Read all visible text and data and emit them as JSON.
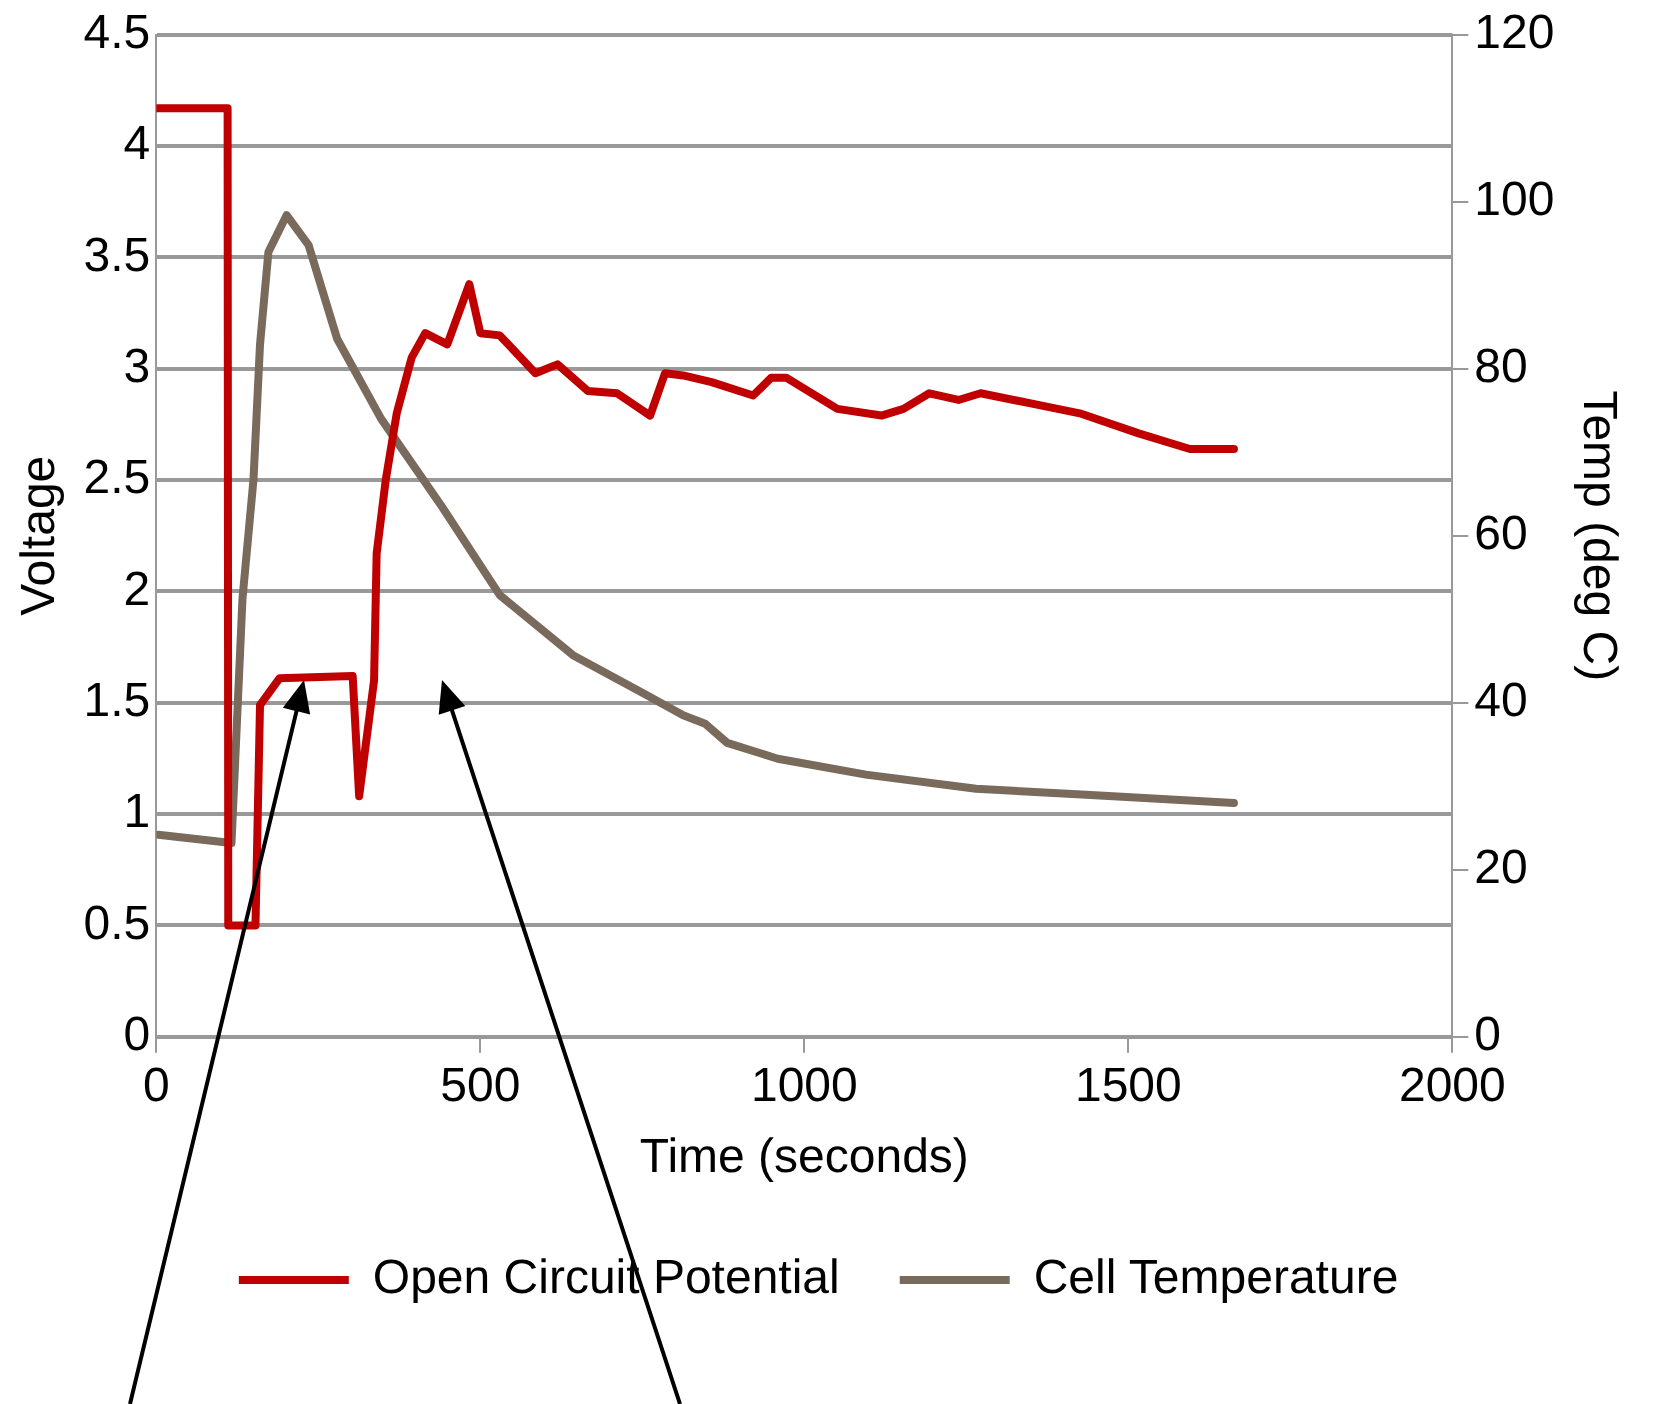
{
  "chart_data": {
    "type": "line",
    "xlabel": "Time (seconds)",
    "ylabel": "Voltage",
    "y2label": "Temp (deg C)",
    "xlim": [
      0,
      2000
    ],
    "xticks": [
      0,
      500,
      1000,
      1500,
      2000
    ],
    "ylim": [
      0,
      4.5
    ],
    "yticks": [
      0,
      0.5,
      1,
      1.5,
      2,
      2.5,
      3,
      3.5,
      4,
      4.5
    ],
    "y2lim": [
      0,
      120
    ],
    "y2ticks": [
      0,
      20,
      40,
      60,
      80,
      100,
      120
    ],
    "grid": "y",
    "legend": "bottom",
    "marker": "none",
    "line_style": "solid",
    "series": [
      {
        "name": "Open Circuit Potential",
        "color": "#c00000",
        "x": [
          0,
          110,
          111,
          153,
          160,
          190,
          303,
          313,
          336,
          340,
          354,
          371,
          394,
          415,
          449,
          483,
          500,
          530,
          585,
          619,
          666,
          711,
          762,
          785,
          813,
          857,
          921,
          949,
          972,
          1051,
          1119,
          1153,
          1193,
          1238,
          1272,
          1357,
          1425,
          1516,
          1595,
          1629,
          1663
        ],
        "values": [
          4.17,
          4.17,
          0.5,
          0.5,
          1.49,
          1.61,
          1.62,
          1.08,
          1.6,
          2.17,
          2.5,
          2.8,
          3.05,
          3.16,
          3.11,
          3.38,
          3.16,
          3.15,
          2.98,
          3.02,
          2.9,
          2.89,
          2.79,
          2.98,
          2.97,
          2.94,
          2.88,
          2.96,
          2.96,
          2.82,
          2.79,
          2.82,
          2.89,
          2.86,
          2.89,
          2.84,
          2.8,
          2.71,
          2.64,
          2.64,
          2.64
        ]
      },
      {
        "name": "Cell Temperature",
        "color": "#7a6a5c",
        "axis": "y2",
        "x": [
          3,
          116,
          133,
          150,
          160,
          173,
          201,
          235,
          279,
          347,
          439,
          530,
          643,
          755,
          813,
          847,
          881,
          959,
          1095,
          1265,
          1435,
          1663
        ],
        "values": [
          24.2,
          23.2,
          52.5,
          66.8,
          82.9,
          94,
          98.4,
          94.8,
          83.6,
          74,
          63.7,
          52.9,
          45.7,
          41,
          38.5,
          37.5,
          35.2,
          33.3,
          31.4,
          29.7,
          29,
          28
        ]
      }
    ]
  }
}
